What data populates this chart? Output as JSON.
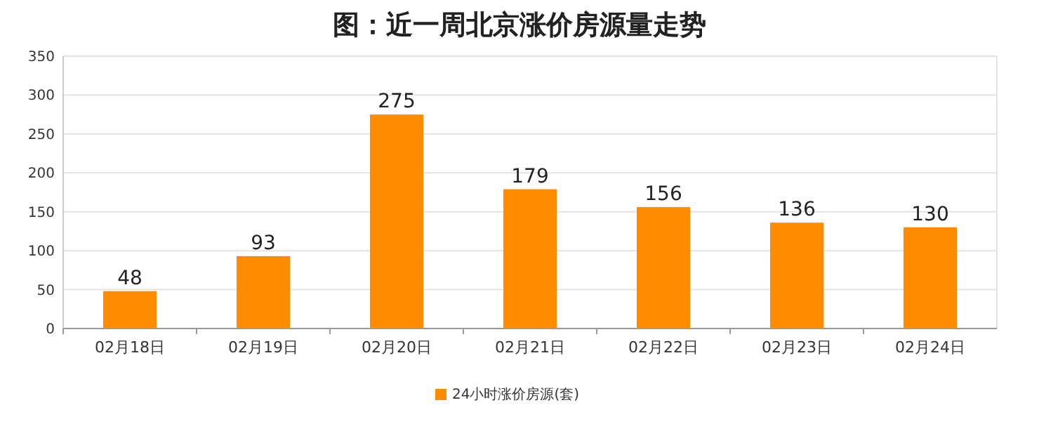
{
  "chart_data": {
    "type": "bar",
    "title": "图：近一周北京涨价房源量走势",
    "categories": [
      "02月18日",
      "02月19日",
      "02月20日",
      "02月21日",
      "02月22日",
      "02月23日",
      "02月24日"
    ],
    "series": [
      {
        "name": "24小时涨价房源(套)",
        "color": "#ff8c00",
        "values": [
          48,
          93,
          275,
          179,
          156,
          136,
          130
        ]
      }
    ],
    "ylim": [
      0,
      350
    ],
    "yticks": [
      0,
      50,
      100,
      150,
      200,
      250,
      300,
      350
    ],
    "grid": "y",
    "legend": "bottom",
    "data_labels": true
  }
}
